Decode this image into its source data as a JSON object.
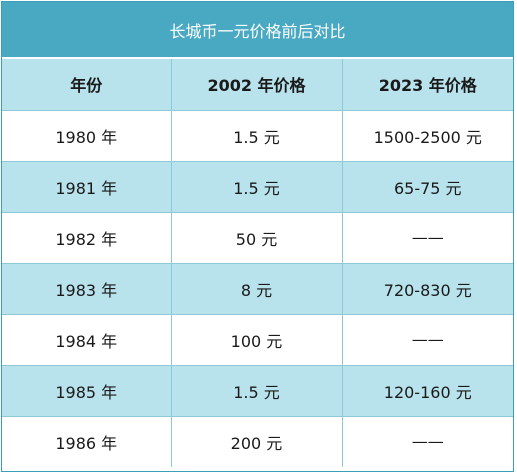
{
  "title": "长城币一元价格前后对比",
  "headers": [
    "年份",
    "2002 年价格",
    "2023 年价格"
  ],
  "rows": [
    [
      "1980 年",
      "1.5 元",
      "1500-2500 元"
    ],
    [
      "1981 年",
      "1.5 元",
      "65-75 元"
    ],
    [
      "1982 年",
      "50 元",
      "——"
    ],
    [
      "1983 年",
      "8 元",
      "720-830 元"
    ],
    [
      "1984 年",
      "100 元",
      "——"
    ],
    [
      "1985 年",
      "1.5 元",
      "120-160 元"
    ],
    [
      "1986 年",
      "200 元",
      "——"
    ]
  ],
  "colors": {
    "title_bg": "#4aa9c2",
    "header_bg": "#b8e2ec",
    "stripe_bg": "#b8e2ec",
    "border": "#8fc8d6"
  }
}
